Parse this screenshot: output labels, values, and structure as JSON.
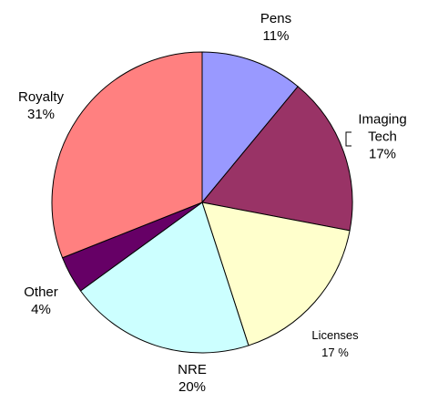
{
  "chart_data": {
    "type": "pie",
    "categories": [
      "Pens",
      "Imaging Tech",
      "Licenses",
      "NRE",
      "Other",
      "Royalty"
    ],
    "values": [
      11,
      17,
      17,
      20,
      4,
      31
    ],
    "value_labels": [
      "11%",
      "17%",
      "17 %",
      "20%",
      "4%",
      "31%"
    ],
    "colors": [
      "#9999ff",
      "#993366",
      "#ffffcc",
      "#ccffff",
      "#660066",
      "#ff8080"
    ]
  }
}
